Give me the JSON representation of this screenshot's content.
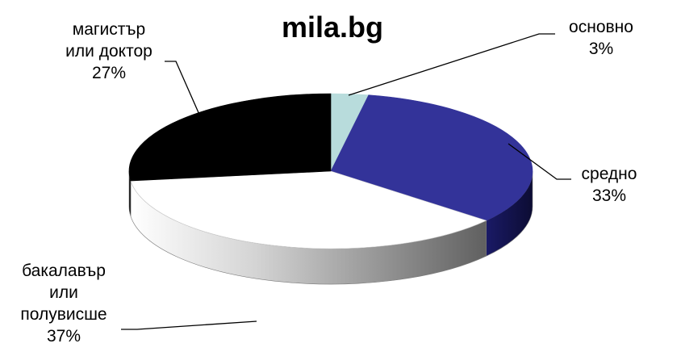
{
  "chart_data": {
    "type": "pie",
    "title": "mila.bg",
    "style": "3d-exploded-none",
    "legend": "none",
    "slices": [
      {
        "label_lines": [
          "основно"
        ],
        "value_label": "3%",
        "value": 3,
        "color": "#b8dcdc"
      },
      {
        "label_lines": [
          "средно"
        ],
        "value_label": "33%",
        "value": 33,
        "color": "#333399"
      },
      {
        "label_lines": [
          "бакалавър",
          "или",
          "полувисше"
        ],
        "value_label": "37%",
        "value": 37,
        "color": "#ffffff"
      },
      {
        "label_lines": [
          "магистър",
          "или доктор"
        ],
        "value_label": "27%",
        "value": 27,
        "color": "#000000"
      }
    ]
  }
}
